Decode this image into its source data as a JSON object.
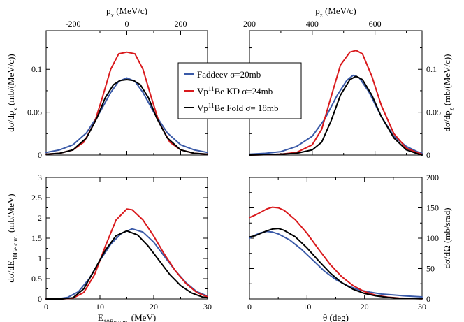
{
  "colors": {
    "faddeev": "#3a5aa8",
    "vp_kd": "#d9191c",
    "vp_fold": "#000000"
  },
  "legend": {
    "placement": "center-top",
    "entries": [
      {
        "key": "faddeev",
        "text": "Faddeev σ=20mb"
      },
      {
        "key": "vp_kd",
        "pre": "Vp",
        "sup": "11",
        "post": "Be KD σ=24mb"
      },
      {
        "key": "vp_fold",
        "pre": "Vp",
        "sup": "11",
        "post": "Be Fold σ= 18mb"
      }
    ]
  },
  "chart_data": [
    {
      "type": "line",
      "panel": "top-left",
      "axis_position": {
        "x": "top",
        "y": "left"
      },
      "xlabel": {
        "main": "p",
        "sub": "x",
        "post": " (MeV/c)"
      },
      "ylabel": {
        "pre": "dσ/dp",
        "sub": "x",
        "post": " (mb/(MeV/c))"
      },
      "xlim": [
        -300,
        300
      ],
      "ylim": [
        0,
        0.145
      ],
      "xticks": [
        -200,
        0,
        200
      ],
      "xtick_labels": [
        "-200",
        "0",
        "200"
      ],
      "yticks": [
        0,
        0.05,
        0.1
      ],
      "ytick_labels": [
        "0",
        "0.05",
        "0.1"
      ],
      "series": [
        {
          "key": "faddeev",
          "points": [
            [
              -300,
              0.003
            ],
            [
              -250,
              0.006
            ],
            [
              -200,
              0.012
            ],
            [
              -150,
              0.026
            ],
            [
              -100,
              0.05
            ],
            [
              -60,
              0.073
            ],
            [
              -30,
              0.086
            ],
            [
              0,
              0.09
            ],
            [
              30,
              0.086
            ],
            [
              60,
              0.073
            ],
            [
              100,
              0.05
            ],
            [
              150,
              0.026
            ],
            [
              200,
              0.012
            ],
            [
              250,
              0.006
            ],
            [
              300,
              0.003
            ]
          ]
        },
        {
          "key": "vp_kd",
          "points": [
            [
              -300,
              0.001
            ],
            [
              -250,
              0.002
            ],
            [
              -200,
              0.006
            ],
            [
              -160,
              0.015
            ],
            [
              -120,
              0.038
            ],
            [
              -90,
              0.068
            ],
            [
              -60,
              0.1
            ],
            [
              -30,
              0.118
            ],
            [
              0,
              0.12
            ],
            [
              30,
              0.118
            ],
            [
              60,
              0.1
            ],
            [
              90,
              0.068
            ],
            [
              120,
              0.038
            ],
            [
              160,
              0.015
            ],
            [
              200,
              0.006
            ],
            [
              250,
              0.002
            ],
            [
              300,
              0.001
            ]
          ]
        },
        {
          "key": "vp_fold",
          "points": [
            [
              -300,
              0.001
            ],
            [
              -250,
              0.002
            ],
            [
              -200,
              0.006
            ],
            [
              -150,
              0.02
            ],
            [
              -110,
              0.044
            ],
            [
              -80,
              0.067
            ],
            [
              -50,
              0.082
            ],
            [
              -25,
              0.087
            ],
            [
              0,
              0.088
            ],
            [
              25,
              0.087
            ],
            [
              50,
              0.082
            ],
            [
              80,
              0.067
            ],
            [
              110,
              0.044
            ],
            [
              150,
              0.02
            ],
            [
              200,
              0.006
            ],
            [
              250,
              0.002
            ],
            [
              300,
              0.001
            ]
          ]
        }
      ]
    },
    {
      "type": "line",
      "panel": "top-right",
      "axis_position": {
        "x": "top",
        "y": "right"
      },
      "xlabel": {
        "main": "p",
        "sub": "z",
        "post": " (MeV/c)"
      },
      "ylabel": {
        "pre": "dσ/dp",
        "sub": "z",
        "post": " (mb/(MeV/c))"
      },
      "xlim": [
        200,
        750
      ],
      "ylim": [
        0,
        0.145
      ],
      "xticks": [
        200,
        400,
        600
      ],
      "xtick_labels": [
        "200",
        "400",
        "600"
      ],
      "yticks": [
        0,
        0.05,
        0.1
      ],
      "ytick_labels": [
        "0",
        "0.05",
        "0.1"
      ],
      "series": [
        {
          "key": "faddeev",
          "points": [
            [
              200,
              0.001
            ],
            [
              250,
              0.002
            ],
            [
              300,
              0.004
            ],
            [
              350,
              0.01
            ],
            [
              400,
              0.022
            ],
            [
              440,
              0.042
            ],
            [
              480,
              0.07
            ],
            [
              510,
              0.087
            ],
            [
              530,
              0.093
            ],
            [
              550,
              0.09
            ],
            [
              580,
              0.074
            ],
            [
              620,
              0.045
            ],
            [
              660,
              0.022
            ],
            [
              700,
              0.01
            ],
            [
              740,
              0.003
            ],
            [
              750,
              0.002
            ]
          ]
        },
        {
          "key": "vp_kd",
          "points": [
            [
              200,
              0.0
            ],
            [
              300,
              0.001
            ],
            [
              350,
              0.003
            ],
            [
              400,
              0.012
            ],
            [
              430,
              0.03
            ],
            [
              460,
              0.068
            ],
            [
              490,
              0.105
            ],
            [
              520,
              0.12
            ],
            [
              540,
              0.122
            ],
            [
              560,
              0.118
            ],
            [
              590,
              0.092
            ],
            [
              620,
              0.058
            ],
            [
              660,
              0.025
            ],
            [
              700,
              0.008
            ],
            [
              740,
              0.002
            ],
            [
              750,
              0.001
            ]
          ]
        },
        {
          "key": "vp_fold",
          "points": [
            [
              200,
              0.0
            ],
            [
              300,
              0.001
            ],
            [
              350,
              0.002
            ],
            [
              400,
              0.006
            ],
            [
              430,
              0.015
            ],
            [
              460,
              0.04
            ],
            [
              490,
              0.07
            ],
            [
              520,
              0.088
            ],
            [
              540,
              0.092
            ],
            [
              560,
              0.088
            ],
            [
              590,
              0.07
            ],
            [
              620,
              0.045
            ],
            [
              660,
              0.02
            ],
            [
              700,
              0.006
            ],
            [
              740,
              0.001
            ],
            [
              750,
              0.0
            ]
          ]
        }
      ]
    },
    {
      "type": "line",
      "panel": "bottom-left",
      "axis_position": {
        "x": "bottom",
        "y": "left"
      },
      "xlabel": {
        "pre": "E",
        "sub": "10Be c.m.",
        "post": " (MeV)"
      },
      "ylabel": {
        "pre": "dσ/dE",
        "sub": "10Be c.m.",
        "post": " (mb/MeV)"
      },
      "xlim": [
        0,
        30
      ],
      "ylim": [
        0,
        3
      ],
      "xticks": [
        0,
        10,
        20,
        30
      ],
      "xtick_labels": [
        "0",
        "10",
        "20",
        "30"
      ],
      "yticks": [
        0,
        0.5,
        1,
        1.5,
        2,
        2.5,
        3
      ],
      "ytick_labels": [
        "0",
        "0.5",
        "1",
        "1.5",
        "2",
        "2.5",
        "3"
      ],
      "series": [
        {
          "key": "faddeev",
          "points": [
            [
              0,
              0
            ],
            [
              2,
              0.0
            ],
            [
              4,
              0.04
            ],
            [
              6,
              0.18
            ],
            [
              8,
              0.5
            ],
            [
              10,
              0.95
            ],
            [
              12,
              1.35
            ],
            [
              14,
              1.62
            ],
            [
              16,
              1.73
            ],
            [
              18,
              1.65
            ],
            [
              20,
              1.4
            ],
            [
              22,
              1.05
            ],
            [
              24,
              0.7
            ],
            [
              26,
              0.4
            ],
            [
              28,
              0.18
            ],
            [
              30,
              0.07
            ]
          ]
        },
        {
          "key": "vp_kd",
          "points": [
            [
              0,
              0
            ],
            [
              3,
              0.0
            ],
            [
              5,
              0.02
            ],
            [
              7,
              0.16
            ],
            [
              9,
              0.6
            ],
            [
              11,
              1.3
            ],
            [
              13,
              1.95
            ],
            [
              15,
              2.22
            ],
            [
              16,
              2.2
            ],
            [
              18,
              1.95
            ],
            [
              20,
              1.55
            ],
            [
              22,
              1.1
            ],
            [
              24,
              0.7
            ],
            [
              26,
              0.38
            ],
            [
              28,
              0.16
            ],
            [
              30,
              0.05
            ]
          ]
        },
        {
          "key": "vp_fold",
          "points": [
            [
              0,
              0
            ],
            [
              3,
              0.0
            ],
            [
              5,
              0.03
            ],
            [
              7,
              0.25
            ],
            [
              9,
              0.72
            ],
            [
              11,
              1.2
            ],
            [
              13,
              1.56
            ],
            [
              15,
              1.68
            ],
            [
              17,
              1.58
            ],
            [
              19,
              1.3
            ],
            [
              21,
              0.95
            ],
            [
              23,
              0.6
            ],
            [
              25,
              0.33
            ],
            [
              27,
              0.15
            ],
            [
              29,
              0.05
            ],
            [
              30,
              0.03
            ]
          ]
        }
      ]
    },
    {
      "type": "line",
      "panel": "bottom-right",
      "axis_position": {
        "x": "bottom",
        "y": "right"
      },
      "xlabel": {
        "pre": "θ (deg)"
      },
      "ylabel": {
        "pre": "dσ/dΩ (mb/srad)"
      },
      "xlim": [
        0,
        30
      ],
      "ylim": [
        0,
        200
      ],
      "xticks": [
        0,
        10,
        20,
        30
      ],
      "xtick_labels": [
        "0",
        "10",
        "20",
        "30"
      ],
      "yticks": [
        0,
        50,
        100,
        150,
        200
      ],
      "ytick_labels": [
        "0",
        "50",
        "100",
        "150",
        "200"
      ],
      "series": [
        {
          "key": "faddeev",
          "points": [
            [
              0,
              100
            ],
            [
              1,
              105
            ],
            [
              2,
              109
            ],
            [
              3,
              111
            ],
            [
              4,
              110
            ],
            [
              5,
              107
            ],
            [
              7,
              97
            ],
            [
              9,
              82
            ],
            [
              11,
              64
            ],
            [
              13,
              46
            ],
            [
              15,
              32
            ],
            [
              17,
              22
            ],
            [
              19,
              15
            ],
            [
              21,
              11
            ],
            [
              23,
              8
            ],
            [
              25,
              6.5
            ],
            [
              27,
              5
            ],
            [
              30,
              3.5
            ]
          ]
        },
        {
          "key": "vp_kd",
          "points": [
            [
              0,
              134
            ],
            [
              1,
              138
            ],
            [
              2,
              143
            ],
            [
              3,
              148
            ],
            [
              4,
              151
            ],
            [
              5,
              150
            ],
            [
              6,
              146
            ],
            [
              8,
              130
            ],
            [
              10,
              108
            ],
            [
              12,
              82
            ],
            [
              14,
              57
            ],
            [
              16,
              37
            ],
            [
              18,
              22
            ],
            [
              20,
              12
            ],
            [
              22,
              6
            ],
            [
              24,
              3
            ],
            [
              26,
              1.5
            ],
            [
              30,
              0.3
            ]
          ]
        },
        {
          "key": "vp_fold",
          "points": [
            [
              0,
              102
            ],
            [
              1,
              104
            ],
            [
              2,
              108
            ],
            [
              3,
              112
            ],
            [
              4,
              115
            ],
            [
              5,
              116
            ],
            [
              6,
              113
            ],
            [
              8,
              102
            ],
            [
              10,
              84
            ],
            [
              12,
              63
            ],
            [
              14,
              43
            ],
            [
              16,
              27
            ],
            [
              18,
              16
            ],
            [
              20,
              9
            ],
            [
              22,
              5
            ],
            [
              24,
              2.5
            ],
            [
              26,
              1.2
            ],
            [
              30,
              0.3
            ]
          ]
        }
      ]
    }
  ]
}
